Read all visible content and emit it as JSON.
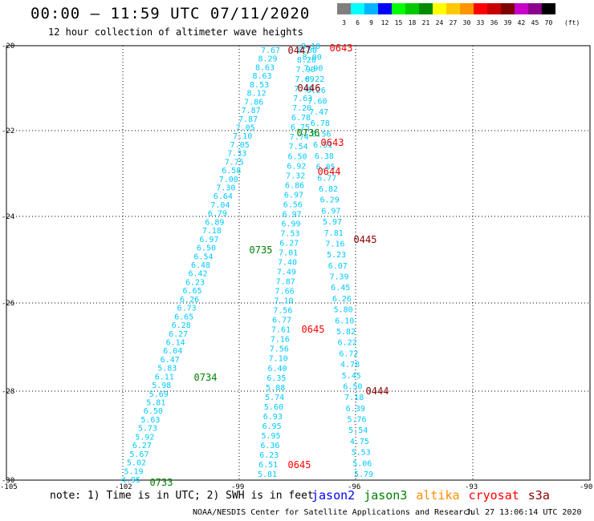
{
  "header": {
    "title": "00:00 – 11:59 UTC 07/11/2020",
    "subtitle": "12 hour collection of altimeter wave heights"
  },
  "color_scale": {
    "unit": "(ft)",
    "entries": [
      {
        "label": "3",
        "color": "#7f7f7f"
      },
      {
        "label": "6",
        "color": "#00ffff"
      },
      {
        "label": "9",
        "color": "#00b4ff"
      },
      {
        "label": "12",
        "color": "#0000ff"
      },
      {
        "label": "15",
        "color": "#00ff00"
      },
      {
        "label": "18",
        "color": "#00c800"
      },
      {
        "label": "21",
        "color": "#008c00"
      },
      {
        "label": "24",
        "color": "#ffff00"
      },
      {
        "label": "27",
        "color": "#ffc800"
      },
      {
        "label": "30",
        "color": "#ff9600"
      },
      {
        "label": "33",
        "color": "#ff0000"
      },
      {
        "label": "36",
        "color": "#c80000"
      },
      {
        "label": "39",
        "color": "#7f0000"
      },
      {
        "label": "42",
        "color": "#c800c8"
      },
      {
        "label": "45",
        "color": "#8c008c"
      },
      {
        "label": "70",
        "color": "#000000"
      }
    ]
  },
  "axes": {
    "lat_labels": [
      "-20",
      "-22",
      "-24",
      "-26",
      "-28",
      "-30"
    ],
    "lon_labels": [
      "-105",
      "-102",
      "-99",
      "-96",
      "-93",
      "-90"
    ]
  },
  "tracks": [
    {
      "id": "A",
      "color": "#00c8ff",
      "values": [
        "7.67",
        "8.29",
        "8.63",
        "8.63",
        "8.53",
        "8.12",
        "7.86",
        "7.87",
        "7.87",
        "7.05",
        "7.10",
        "7.05",
        "7.33",
        "7.75",
        "6.58",
        "7.00",
        "7.30",
        "6.64",
        "7.04",
        "6.79",
        "6.89",
        "7.18",
        "6.97",
        "6.50",
        "6.54",
        "6.48",
        "6.42",
        "6.23",
        "6.65",
        "6.26",
        "6.73",
        "6.65",
        "6.28",
        "6.27",
        "6.14",
        "6.04",
        "6.47",
        "5.83",
        "6.11",
        "5.98",
        "5.69",
        "5.81",
        "6.50",
        "5.63",
        "5.73",
        "5.92",
        "6.27",
        "5.67",
        "5.02",
        "5.19",
        "4.95"
      ]
    },
    {
      "id": "B",
      "color": "#00c8ff",
      "values": [
        "8.00",
        "8.20",
        "7.90",
        "7.69",
        "7.69",
        "7.63",
        "7.20",
        "6.78",
        "6.75",
        "7.74",
        "7.54",
        "6.50",
        "6.92",
        "7.32",
        "6.86",
        "6.97",
        "6.56",
        "6.97",
        "6.99",
        "7.53",
        "6.27",
        "7.01",
        "7.40",
        "7.49",
        "7.87",
        "7.66",
        "7.10",
        "7.56",
        "6.77",
        "7.61",
        "7.16",
        "7.56",
        "7.10",
        "6.40",
        "6.35",
        "5.88",
        "5.74",
        "5.60",
        "6.93",
        "6.95",
        "5.95",
        "6.36",
        "6.23",
        "6.51",
        "5.81"
      ]
    },
    {
      "id": "C",
      "color": "#00c8ff",
      "values": [
        "8.10",
        "8.00",
        "7.90",
        "8.22",
        "9.26",
        "7.60",
        "7.47",
        "6.78",
        "6.56",
        "6.51",
        "6.38",
        "6.85",
        "6.77",
        "6.82",
        "6.29",
        "6.97",
        "5.97",
        "7.81",
        "7.16",
        "5.23",
        "6.07",
        "7.39",
        "6.45",
        "6.26",
        "5.80",
        "6.10",
        "5.82",
        "6.22",
        "6.72",
        "4.78",
        "5.45",
        "6.50",
        "7.18",
        "6.39",
        "5.76",
        "5.54",
        "4.75",
        "5.53",
        "5.06",
        "5.79"
      ]
    }
  ],
  "pass_times": [
    {
      "text": "0447",
      "color": "#8b0000"
    },
    {
      "text": "0643",
      "color": "#ff0000"
    },
    {
      "text": "0446",
      "color": "#8b0000"
    },
    {
      "text": "0736",
      "color": "#008000"
    },
    {
      "text": "0643",
      "color": "#ff0000"
    },
    {
      "text": "0644",
      "color": "#ff0000"
    },
    {
      "text": "0445",
      "color": "#8b0000"
    },
    {
      "text": "0735",
      "color": "#008000"
    },
    {
      "text": "0645",
      "color": "#ff0000"
    },
    {
      "text": "0734",
      "color": "#008000"
    },
    {
      "text": "0444",
      "color": "#8b0000"
    },
    {
      "text": "0645",
      "color": "#ff0000"
    },
    {
      "text": "0733",
      "color": "#008000"
    }
  ],
  "footer": {
    "note": "note: 1) Time is in UTC; 2) SWH is in feet",
    "legend": [
      {
        "label": "jason2",
        "color": "#0000ff"
      },
      {
        "label": "jason3",
        "color": "#008000"
      },
      {
        "label": "altika",
        "color": "#ff8c00"
      },
      {
        "label": "cryosat",
        "color": "#ff0000"
      },
      {
        "label": "s3a",
        "color": "#8b0000"
      }
    ],
    "credit": "NOAA/NESDIS Center for Satellite Applications and Research",
    "timestamp": "Jul 27 13:06:14 UTC 2020"
  }
}
